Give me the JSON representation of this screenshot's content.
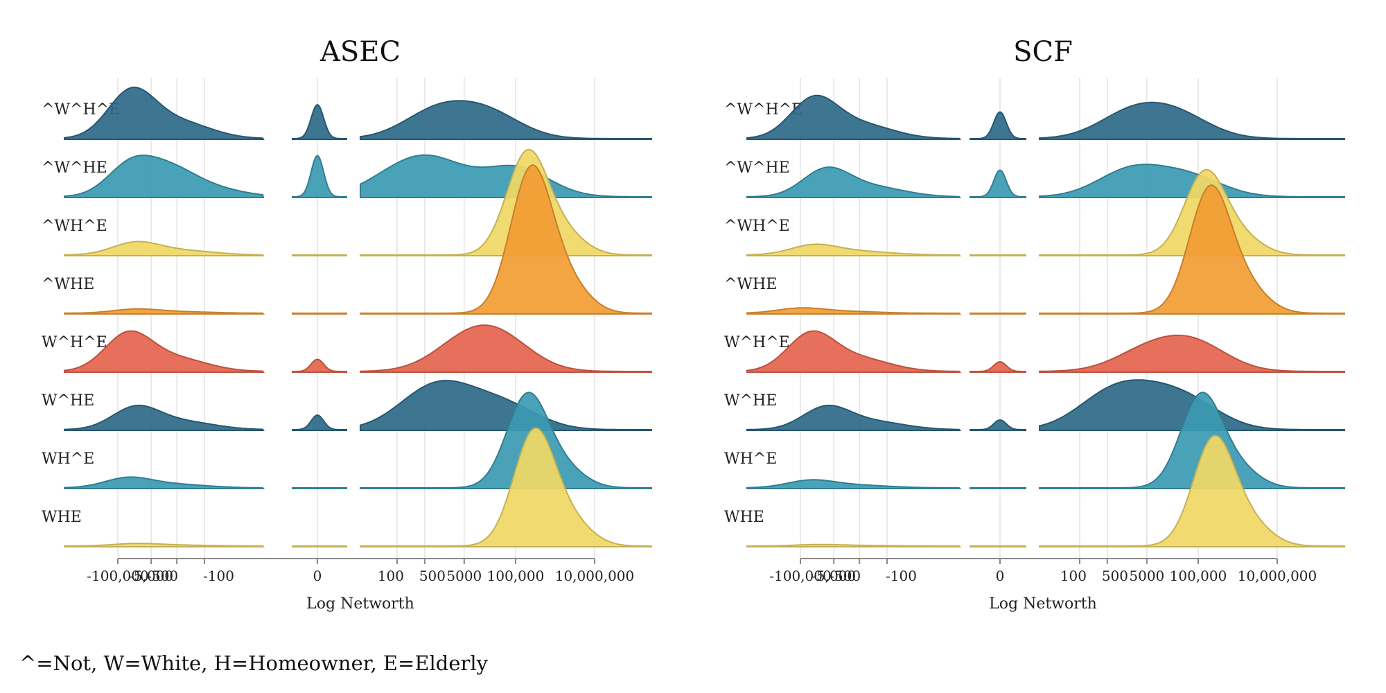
{
  "caption": "^=Not, W=White, H=Homeowner, E=Elderly",
  "colors": {
    "dark_blue": "#2e6a89",
    "teal": "#3b9ab2",
    "yellow": "#f0d865",
    "orange": "#f29c33",
    "red": "#e4644d",
    "grid": "#dddddd",
    "axis": "#888888"
  },
  "chart_data": [
    {
      "type": "area",
      "subtype": "ridgeline",
      "title": "ASEC",
      "xlabel": "Log Networth",
      "ylabel": "",
      "x_scale": "signed log",
      "x_ticks": [
        "-100,000",
        "-5,000",
        "-500",
        "-100",
        "0",
        "100",
        "500",
        "5000",
        "100,000",
        "10,000,000"
      ],
      "groups": [
        "^W^H^E",
        "^W^HE",
        "^WH^E",
        "^WHE",
        "W^H^E",
        "W^HE",
        "WH^E",
        "WHE"
      ],
      "series": [
        {
          "name": "^W^H^E",
          "color": "dark_blue",
          "negative_peaks": [
            {
              "at": "-30,000",
              "height": 0.95
            }
          ],
          "zero_peak": 0.7,
          "positive_peaks": [
            {
              "at": "1,000",
              "height": 0.55
            },
            {
              "at": "20,000",
              "height": 0.5
            }
          ]
        },
        {
          "name": "^W^HE",
          "color": "teal",
          "negative_peaks": [
            {
              "at": "-30,000",
              "height": 0.65
            },
            {
              "at": "-1,000",
              "height": 0.3
            }
          ],
          "zero_peak": 0.85,
          "positive_peaks": [
            {
              "at": "100",
              "height": 0.4
            },
            {
              "at": "1,000",
              "height": 0.6
            },
            {
              "at": "100,000",
              "height": 0.6
            }
          ]
        },
        {
          "name": "^WH^E",
          "color": "yellow",
          "negative_peaks": [
            {
              "at": "-20,000",
              "height": 0.25
            }
          ],
          "zero_peak": 0.0,
          "positive_peaks": [
            {
              "at": "200,000",
              "height": 2.1
            }
          ]
        },
        {
          "name": "^WHE",
          "color": "orange",
          "negative_peaks": [
            {
              "at": "-20,000",
              "height": 0.08
            }
          ],
          "zero_peak": 0.0,
          "positive_peaks": [
            {
              "at": "250,000",
              "height": 2.95
            }
          ]
        },
        {
          "name": "W^H^E",
          "color": "red",
          "negative_peaks": [
            {
              "at": "-40,000",
              "height": 0.75
            }
          ],
          "zero_peak": 0.25,
          "positive_peaks": [
            {
              "at": "5,000",
              "height": 0.5
            },
            {
              "at": "40,000",
              "height": 0.6
            }
          ]
        },
        {
          "name": "W^HE",
          "color": "dark_blue",
          "negative_peaks": [
            {
              "at": "-20,000",
              "height": 0.45
            }
          ],
          "zero_peak": 0.3,
          "positive_peaks": [
            {
              "at": "500",
              "height": 0.55
            },
            {
              "at": "3,000",
              "height": 0.5
            },
            {
              "at": "60,000",
              "height": 0.45
            }
          ]
        },
        {
          "name": "WH^E",
          "color": "teal",
          "negative_peaks": [
            {
              "at": "-40,000",
              "height": 0.2
            }
          ],
          "zero_peak": 0.0,
          "positive_peaks": [
            {
              "at": "200,000",
              "height": 1.9
            }
          ]
        },
        {
          "name": "WHE",
          "color": "yellow",
          "negative_peaks": [
            {
              "at": "-20,000",
              "height": 0.05
            }
          ],
          "zero_peak": 0.0,
          "positive_peaks": [
            {
              "at": "300,000",
              "height": 2.35
            }
          ]
        }
      ]
    },
    {
      "type": "area",
      "subtype": "ridgeline",
      "title": "SCF",
      "xlabel": "Log Networth",
      "ylabel": "",
      "x_scale": "signed log",
      "x_ticks": [
        "-100,000",
        "-5,000",
        "-500",
        "-100",
        "0",
        "100",
        "500",
        "5000",
        "100,000",
        "10,000,000"
      ],
      "groups": [
        "^W^H^E",
        "^W^HE",
        "^WH^E",
        "^WHE",
        "W^H^E",
        "W^HE",
        "WH^E",
        "WHE"
      ],
      "series": [
        {
          "name": "^W^H^E",
          "color": "dark_blue",
          "negative_peaks": [
            {
              "at": "-30,000",
              "height": 0.8
            }
          ],
          "zero_peak": 0.55,
          "positive_peaks": [
            {
              "at": "2,000",
              "height": 0.5
            },
            {
              "at": "30,000",
              "height": 0.45
            }
          ]
        },
        {
          "name": "^W^HE",
          "color": "teal",
          "negative_peaks": [
            {
              "at": "-10,000",
              "height": 0.55
            }
          ],
          "zero_peak": 0.55,
          "positive_peaks": [
            {
              "at": "2,000",
              "height": 0.55
            },
            {
              "at": "60,000",
              "height": 0.4
            }
          ]
        },
        {
          "name": "^WH^E",
          "color": "yellow",
          "negative_peaks": [
            {
              "at": "-30,000",
              "height": 0.2
            }
          ],
          "zero_peak": 0.0,
          "positive_peaks": [
            {
              "at": "150,000",
              "height": 1.7
            }
          ]
        },
        {
          "name": "^WHE",
          "color": "orange",
          "negative_peaks": [
            {
              "at": "-100,000",
              "height": 0.1
            }
          ],
          "zero_peak": 0.0,
          "positive_peaks": [
            {
              "at": "200,000",
              "height": 2.55
            }
          ]
        },
        {
          "name": "W^H^E",
          "color": "red",
          "negative_peaks": [
            {
              "at": "-40,000",
              "height": 0.75
            }
          ],
          "zero_peak": 0.2,
          "positive_peaks": [
            {
              "at": "5,000",
              "height": 0.4
            },
            {
              "at": "80,000",
              "height": 0.55
            }
          ]
        },
        {
          "name": "W^HE",
          "color": "dark_blue",
          "negative_peaks": [
            {
              "at": "-10,000",
              "height": 0.45
            }
          ],
          "zero_peak": 0.2,
          "positive_peaks": [
            {
              "at": "500",
              "height": 0.6
            },
            {
              "at": "5,000",
              "height": 0.5
            },
            {
              "at": "60,000",
              "height": 0.5
            }
          ]
        },
        {
          "name": "WH^E",
          "color": "teal",
          "negative_peaks": [
            {
              "at": "-40,000",
              "height": 0.15
            }
          ],
          "zero_peak": 0.0,
          "positive_peaks": [
            {
              "at": "120,000",
              "height": 1.9
            }
          ]
        },
        {
          "name": "WHE",
          "color": "yellow",
          "negative_peaks": [
            {
              "at": "-20,000",
              "height": 0.03
            }
          ],
          "zero_peak": 0.0,
          "positive_peaks": [
            {
              "at": "250,000",
              "height": 2.2
            }
          ]
        }
      ]
    }
  ]
}
